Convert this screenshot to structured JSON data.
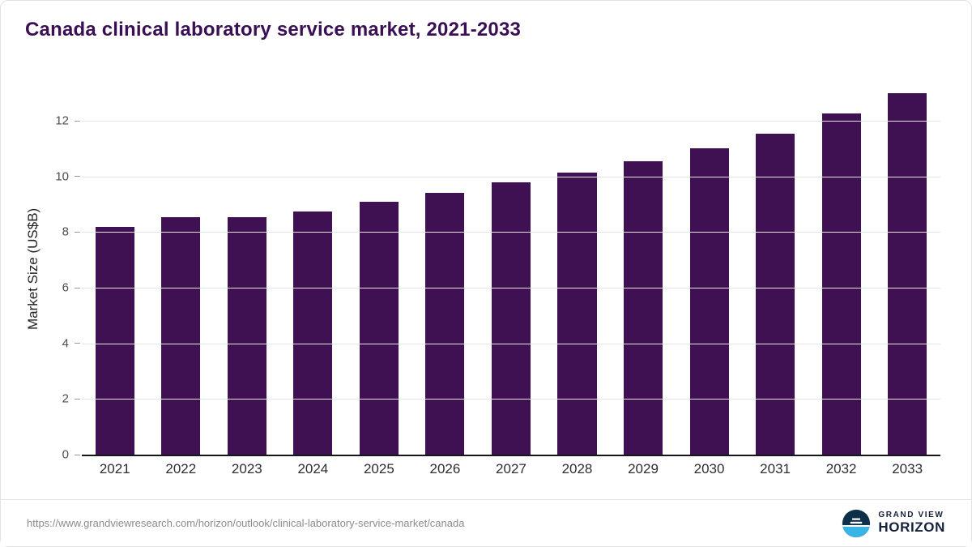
{
  "title": "Canada clinical laboratory service market, 2021-2033",
  "footer": {
    "source_url": "https://www.grandviewresearch.com/horizon/outlook/clinical-laboratory-service-market/canada",
    "logo": {
      "icon": "horizon-sun-icon",
      "text_top": "GRAND VIEW",
      "text_bottom": "HORIZON"
    }
  },
  "colors": {
    "bar": "#3f1153",
    "title": "#3a0f53",
    "axis": "#15151c",
    "gridline": "#e4e4e4",
    "logo_dark": "#0d3048",
    "logo_accent": "#39b4e6"
  },
  "chart_data": {
    "type": "bar",
    "title": "Canada clinical laboratory service market, 2021-2033",
    "categories": [
      "2021",
      "2022",
      "2023",
      "2024",
      "2025",
      "2026",
      "2027",
      "2028",
      "2029",
      "2030",
      "2031",
      "2032",
      "2033"
    ],
    "values": [
      8.2,
      8.55,
      8.55,
      8.75,
      9.1,
      9.4,
      9.8,
      10.15,
      10.55,
      11.0,
      11.55,
      12.25,
      13.0
    ],
    "xlabel": "",
    "ylabel": "Market Size (US$B)",
    "ylim": [
      0,
      13.4
    ],
    "yticks": [
      0,
      2,
      4,
      6,
      8,
      10,
      12
    ],
    "grid": true,
    "legend": false
  }
}
